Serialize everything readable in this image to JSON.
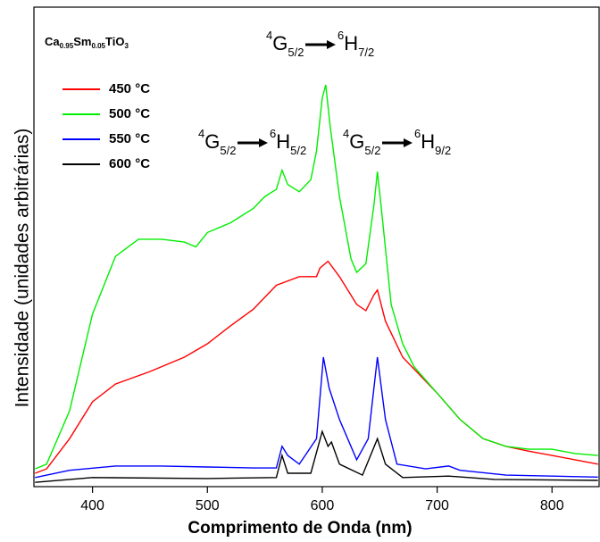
{
  "chart_data": {
    "type": "line",
    "x_label": "Comprimento de Onda (nm)",
    "y_label": "Intensidade (unidades arbitrárias)",
    "sample_label": [
      "Ca",
      "0.95",
      "Sm",
      "0.05",
      "TiO",
      "3"
    ],
    "annotations": [
      {
        "parts": [
          "4",
          "G",
          "5/2",
          "6",
          "H",
          "5/2"
        ]
      },
      {
        "parts": [
          "4",
          "G",
          "5/2",
          "6",
          "H",
          "7/2"
        ]
      },
      {
        "parts": [
          "4",
          "G",
          "5/2",
          "6",
          "H",
          "9/2"
        ]
      }
    ],
    "xlim": [
      349,
      841
    ],
    "ylim": [
      0,
      100
    ],
    "xticks": [
      400,
      500,
      600,
      700,
      800
    ],
    "legend": "upper left",
    "series": [
      {
        "name": "450 °C",
        "color": "#ff0000",
        "x": [
          350,
          360,
          380,
          400,
          420,
          450,
          480,
          500,
          520,
          540,
          560,
          580,
          595,
          598,
          605,
          615,
          630,
          638,
          645,
          648,
          655,
          670,
          700,
          720,
          740,
          760,
          780,
          800,
          820,
          840
        ],
        "values": [
          2.8,
          3.7,
          10,
          17.7,
          21.4,
          24,
          27,
          29.8,
          33.5,
          37,
          42,
          43.8,
          43.8,
          45.6,
          47,
          43.8,
          38,
          36.7,
          40,
          41,
          34.5,
          27,
          19.5,
          14,
          10,
          8.4,
          7.4,
          6.5,
          5.6,
          4.7
        ]
      },
      {
        "name": "500 °C",
        "color": "#00ee00",
        "x": [
          350,
          360,
          380,
          400,
          420,
          440,
          460,
          480,
          490,
          500,
          520,
          540,
          550,
          560,
          565,
          570,
          580,
          590,
          595,
          600,
          603,
          607,
          615,
          625,
          630,
          638,
          645,
          648,
          652,
          660,
          670,
          680,
          700,
          720,
          740,
          760,
          780,
          800,
          820,
          840
        ],
        "values": [
          3.7,
          4.7,
          15.8,
          36,
          48,
          51.6,
          51.6,
          51,
          50,
          53,
          55,
          58,
          60.5,
          62,
          66,
          63,
          61.5,
          64,
          70,
          81,
          83.8,
          75,
          60.5,
          47.5,
          44.7,
          46.5,
          58.7,
          65.7,
          56.8,
          38,
          29.8,
          25,
          19.5,
          14,
          10,
          8.4,
          7.8,
          7.8,
          6.9,
          6.5
        ]
      },
      {
        "name": "550 °C",
        "color": "#0000ff",
        "x": [
          350,
          380,
          420,
          460,
          500,
          540,
          560,
          565,
          570,
          580,
          595,
          601,
          606,
          615,
          630,
          640,
          648,
          655,
          665,
          690,
          710,
          720,
          760,
          800,
          840
        ],
        "values": [
          1.9,
          3.4,
          4.3,
          4.3,
          4.1,
          3.9,
          3.9,
          8.4,
          6.5,
          4.7,
          10,
          27,
          20.5,
          14,
          5.6,
          10,
          27,
          14,
          4.7,
          3.7,
          4.3,
          3.4,
          2.4,
          2.2,
          2
        ]
      },
      {
        "name": "600 °C",
        "color": "#000000",
        "x": [
          350,
          400,
          500,
          560,
          565,
          570,
          590,
          600,
          605,
          608,
          615,
          635,
          648,
          655,
          670,
          710,
          750,
          840
        ],
        "values": [
          0.9,
          1.9,
          1.7,
          1.9,
          6.5,
          2.8,
          2.8,
          11.5,
          8.4,
          9.3,
          4.7,
          2.4,
          10,
          4.7,
          1.9,
          2.2,
          1.5,
          1.3
        ]
      }
    ]
  }
}
